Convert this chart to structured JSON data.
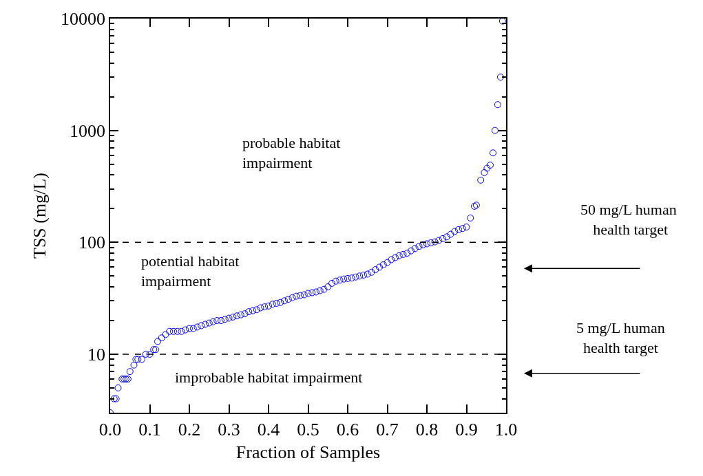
{
  "chart_data": {
    "type": "scatter",
    "xlabel": "Fraction of Samples",
    "ylabel": "TSS (mg/L)",
    "log": "y",
    "marker": "circle",
    "xlim": [
      0,
      1
    ],
    "xticks": [
      {
        "value": 0,
        "label": "0.0"
      },
      0.1,
      0.2,
      0.3,
      0.4,
      0.5,
      0.6,
      0.7,
      0.8,
      0.9,
      {
        "value": 1,
        "label": "1.0"
      }
    ],
    "ylim": [
      3,
      10000
    ],
    "yticks": [
      {
        "value": 4,
        "label": null
      },
      {
        "value": 5,
        "label": null
      },
      {
        "value": 6,
        "label": null
      },
      {
        "value": 7,
        "label": null
      },
      {
        "value": 8,
        "label": null
      },
      {
        "value": 9,
        "label": null
      },
      10,
      {
        "value": 20,
        "label": null
      },
      {
        "value": 30,
        "label": null
      },
      {
        "value": 40,
        "label": null
      },
      {
        "value": 50,
        "label": null
      },
      {
        "value": 60,
        "label": null
      },
      {
        "value": 70,
        "label": null
      },
      {
        "value": 80,
        "label": null
      },
      {
        "value": 90,
        "label": null
      },
      100,
      {
        "value": 200,
        "label": null
      },
      {
        "value": 300,
        "label": null
      },
      {
        "value": 400,
        "label": null
      },
      {
        "value": 500,
        "label": null
      },
      {
        "value": 600,
        "label": null
      },
      {
        "value": 700,
        "label": null
      },
      {
        "value": 800,
        "label": null
      },
      {
        "value": 900,
        "label": null
      },
      1000,
      {
        "value": 2000,
        "label": null
      },
      {
        "value": 3000,
        "label": null
      },
      {
        "value": 4000,
        "label": null
      },
      {
        "value": 5000,
        "label": null
      },
      {
        "value": 6000,
        "label": null
      },
      {
        "value": 7000,
        "label": null
      },
      {
        "value": 8000,
        "label": null
      },
      {
        "value": 9000,
        "label": null
      },
      10000
    ],
    "ref_lines": [
      {
        "axis": "y",
        "value": 10,
        "color": "#000000",
        "line_style": "dashed"
      },
      {
        "axis": "y",
        "value": 100,
        "color": "#000000",
        "line_style": "dashed"
      }
    ],
    "annotations": [
      "probable habitat\nimpairment",
      "potential habitat\nimpairment",
      "improbable habitat impairment",
      "50 mg/L human\n health target",
      "5 mg/L human\nhealth target"
    ],
    "series": [
      {
        "color": "#0000ff",
        "x": [
          0.0,
          0.01,
          0.015,
          0.02,
          0.03,
          0.035,
          0.04,
          0.045,
          0.05,
          0.06,
          0.065,
          0.07,
          0.08,
          0.09,
          0.1,
          0.11,
          0.115,
          0.12,
          0.13,
          0.14,
          0.15,
          0.16,
          0.17,
          0.18,
          0.19,
          0.2,
          0.21,
          0.22,
          0.23,
          0.24,
          0.25,
          0.26,
          0.27,
          0.28,
          0.29,
          0.3,
          0.31,
          0.32,
          0.33,
          0.34,
          0.35,
          0.36,
          0.37,
          0.38,
          0.39,
          0.4,
          0.41,
          0.42,
          0.43,
          0.44,
          0.45,
          0.46,
          0.47,
          0.48,
          0.49,
          0.5,
          0.51,
          0.52,
          0.53,
          0.54,
          0.55,
          0.56,
          0.57,
          0.58,
          0.59,
          0.6,
          0.61,
          0.62,
          0.63,
          0.64,
          0.65,
          0.66,
          0.67,
          0.68,
          0.69,
          0.7,
          0.71,
          0.72,
          0.73,
          0.74,
          0.75,
          0.76,
          0.77,
          0.78,
          0.79,
          0.8,
          0.81,
          0.82,
          0.83,
          0.84,
          0.85,
          0.86,
          0.87,
          0.88,
          0.89,
          0.9,
          0.91,
          0.92,
          0.925,
          0.936,
          0.945,
          0.952,
          0.96,
          0.967,
          0.972,
          0.979,
          0.986,
          0.991
        ],
        "values": [
          3,
          4,
          4,
          5,
          6,
          6,
          6,
          6,
          7,
          8,
          9,
          9,
          9,
          10,
          10,
          11,
          11,
          13,
          14,
          15,
          16,
          16,
          16,
          16,
          16.5,
          17,
          17,
          17.5,
          18,
          18.5,
          19,
          19.5,
          20,
          20,
          20.5,
          21,
          21.5,
          22,
          22.5,
          23,
          24,
          24.5,
          25,
          26,
          26.5,
          27,
          28,
          28.5,
          29,
          30,
          31,
          32,
          33,
          33.5,
          34,
          35,
          35.5,
          36,
          37,
          38,
          40,
          43,
          45,
          46,
          47,
          47.5,
          48,
          49,
          50,
          51,
          52,
          54,
          57,
          60,
          63,
          66,
          70,
          73,
          76,
          78,
          80,
          84,
          88,
          92,
          95,
          97,
          99,
          101,
          104,
          108,
          112,
          118,
          125,
          130,
          133,
          137,
          165,
          210,
          215,
          360,
          420,
          460,
          490,
          630,
          1000,
          1700,
          3000,
          9500
        ]
      }
    ]
  }
}
